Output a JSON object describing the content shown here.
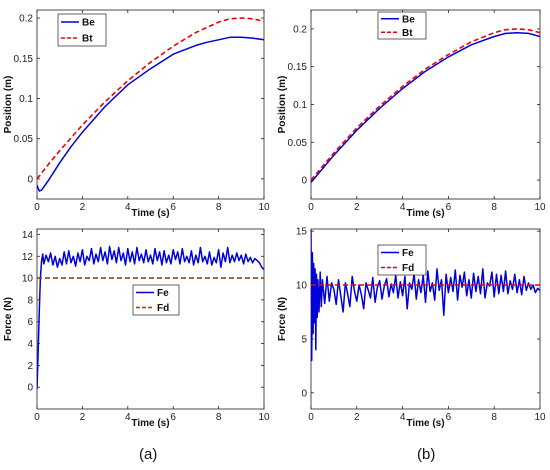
{
  "captions": {
    "a": "(a)",
    "b": "(b)"
  },
  "colors": {
    "be": "#0000dd",
    "bt": "#ee0000",
    "fe": "#0000dd",
    "fd_a": "#8b4513",
    "fd_b": "#ee0000"
  },
  "chart_data": [
    {
      "id": "a_pos",
      "type": "line",
      "xlabel": "Time (s)",
      "ylabel": "Position (m)",
      "xlim": [
        0,
        10
      ],
      "ylim": [
        -0.025,
        0.21
      ],
      "xticks": [
        0,
        2,
        4,
        6,
        8,
        10
      ],
      "yticks": [
        0,
        0.05,
        0.1,
        0.15,
        0.2
      ],
      "grid": false,
      "legend": "top-left",
      "series": [
        {
          "name": "Be",
          "style": "solid",
          "color": "#0000dd",
          "x": [
            0,
            0.1,
            0.2,
            0.3,
            0.5,
            1,
            1.5,
            2,
            3,
            4,
            5,
            6,
            7,
            7.5,
            8,
            8.5,
            9,
            9.5,
            10
          ],
          "y": [
            -0.008,
            -0.015,
            -0.014,
            -0.01,
            -0.002,
            0.02,
            0.04,
            0.058,
            0.09,
            0.117,
            0.137,
            0.155,
            0.166,
            0.17,
            0.173,
            0.176,
            0.176,
            0.175,
            0.173
          ]
        },
        {
          "name": "Bt",
          "style": "dashed",
          "color": "#ee0000",
          "x": [
            0,
            0.5,
            1,
            2,
            3,
            4,
            5,
            6,
            7,
            8,
            8.5,
            9,
            9.5,
            10
          ],
          "y": [
            0,
            0.018,
            0.035,
            0.067,
            0.096,
            0.122,
            0.145,
            0.165,
            0.182,
            0.195,
            0.199,
            0.2,
            0.199,
            0.196
          ]
        }
      ]
    },
    {
      "id": "b_pos",
      "type": "line",
      "xlabel": "Time (s)",
      "ylabel": "Position (m)",
      "xlim": [
        0,
        10
      ],
      "ylim": [
        -0.025,
        0.225
      ],
      "xticks": [
        0,
        2,
        4,
        6,
        8,
        10
      ],
      "yticks": [
        0,
        0.05,
        0.1,
        0.15,
        0.2
      ],
      "grid": false,
      "legend": "top-center",
      "series": [
        {
          "name": "Be",
          "style": "solid",
          "color": "#0000dd",
          "x": [
            0,
            1,
            2,
            3,
            4,
            5,
            6,
            7,
            8,
            8.5,
            9,
            9.5,
            10
          ],
          "y": [
            -0.003,
            0.033,
            0.066,
            0.095,
            0.121,
            0.144,
            0.163,
            0.179,
            0.19,
            0.194,
            0.195,
            0.194,
            0.19
          ]
        },
        {
          "name": "Bt",
          "style": "dashed",
          "color": "#ee0000",
          "x": [
            0,
            1,
            2,
            3,
            4,
            5,
            6,
            7,
            8,
            8.5,
            9,
            9.5,
            10
          ],
          "y": [
            0,
            0.036,
            0.069,
            0.098,
            0.124,
            0.147,
            0.166,
            0.183,
            0.195,
            0.199,
            0.2,
            0.199,
            0.195
          ]
        }
      ]
    },
    {
      "id": "a_force",
      "type": "line",
      "xlabel": "Time (s)",
      "ylabel": "Force (N)",
      "xlim": [
        0,
        10
      ],
      "ylim": [
        -2,
        14.5
      ],
      "xticks": [
        0,
        2,
        4,
        6,
        8,
        10
      ],
      "yticks": [
        0,
        2,
        4,
        6,
        8,
        10,
        12,
        14
      ],
      "grid": false,
      "legend": "center",
      "series": [
        {
          "name": "Fe",
          "style": "solid",
          "color": "#0000dd",
          "x": [
            0,
            0.05,
            0.1,
            0.15,
            0.2,
            0.25,
            0.3,
            0.4,
            0.5,
            0.6,
            0.7,
            0.8,
            0.9,
            1.0,
            1.1,
            1.2,
            1.3,
            1.4,
            1.5,
            1.6,
            1.7,
            1.8,
            1.9,
            2.0,
            2.1,
            2.2,
            2.3,
            2.4,
            2.5,
            2.6,
            2.7,
            2.8,
            2.9,
            3.0,
            3.1,
            3.2,
            3.3,
            3.4,
            3.5,
            3.6,
            3.7,
            3.8,
            3.9,
            4.0,
            4.1,
            4.2,
            4.3,
            4.4,
            4.5,
            4.6,
            4.7,
            4.8,
            4.9,
            5.0,
            5.1,
            5.2,
            5.3,
            5.4,
            5.5,
            5.6,
            5.7,
            5.8,
            5.9,
            6.0,
            6.1,
            6.2,
            6.3,
            6.4,
            6.5,
            6.6,
            6.7,
            6.8,
            6.9,
            7.0,
            7.1,
            7.2,
            7.3,
            7.4,
            7.5,
            7.6,
            7.7,
            7.8,
            7.9,
            8.0,
            8.1,
            8.2,
            8.3,
            8.4,
            8.5,
            8.6,
            8.7,
            8.8,
            8.9,
            9.0,
            9.1,
            9.2,
            9.3,
            9.4,
            9.5,
            9.6,
            9.7,
            9.8,
            9.9,
            10.0
          ],
          "y": [
            -0.2,
            3,
            7,
            10,
            11.5,
            12.2,
            11.3,
            12.1,
            11.5,
            12.3,
            11.2,
            12.0,
            11.0,
            11.8,
            11.2,
            12.4,
            11.3,
            12.5,
            11.4,
            12.0,
            11.1,
            12.3,
            11.5,
            12.6,
            11.2,
            12.0,
            11.6,
            12.7,
            11.3,
            12.2,
            11.5,
            12.8,
            11.6,
            12.4,
            11.3,
            12.9,
            11.7,
            12.5,
            11.4,
            12.8,
            11.6,
            12.3,
            11.2,
            12.7,
            11.5,
            12.4,
            11.3,
            12.8,
            11.6,
            12.2,
            11.4,
            12.6,
            11.5,
            12.1,
            11.3,
            12.7,
            11.6,
            12.4,
            11.2,
            12.5,
            11.4,
            12.1,
            11.3,
            12.6,
            11.7,
            12.4,
            11.3,
            12.7,
            11.5,
            12.0,
            11.4,
            12.5,
            11.2,
            12.1,
            11.4,
            12.8,
            11.5,
            12.0,
            11.3,
            12.4,
            11.2,
            11.9,
            11.4,
            12.6,
            11.0,
            12.3,
            11.5,
            12.8,
            11.4,
            12.1,
            11.5,
            12.3,
            11.6,
            12.1,
            11.3,
            12.2,
            11.5,
            11.9,
            11.4,
            11.8,
            11.6,
            11.4,
            11.0,
            10.8
          ]
        },
        {
          "name": "Fd",
          "style": "dashed",
          "color": "#8b4513",
          "x": [
            0,
            10
          ],
          "y": [
            10,
            10
          ]
        }
      ]
    },
    {
      "id": "b_force",
      "type": "line",
      "xlabel": "Time (s)",
      "ylabel": "Force (N)",
      "xlim": [
        0,
        10
      ],
      "ylim": [
        -1.5,
        15.2
      ],
      "xticks": [
        0,
        2,
        4,
        6,
        8,
        10
      ],
      "yticks": [
        0,
        5,
        10,
        15
      ],
      "grid": false,
      "legend": "top-left",
      "series": [
        {
          "name": "Fe",
          "style": "solid",
          "color": "#0000dd",
          "x": [
            0,
            0.03,
            0.06,
            0.09,
            0.12,
            0.15,
            0.18,
            0.21,
            0.24,
            0.27,
            0.3,
            0.35,
            0.4,
            0.45,
            0.5,
            0.6,
            0.7,
            0.8,
            0.9,
            1.0,
            1.1,
            1.2,
            1.3,
            1.4,
            1.5,
            1.6,
            1.7,
            1.8,
            1.9,
            2.0,
            2.1,
            2.2,
            2.3,
            2.4,
            2.5,
            2.6,
            2.7,
            2.8,
            2.9,
            3.0,
            3.1,
            3.2,
            3.3,
            3.4,
            3.5,
            3.6,
            3.7,
            3.8,
            3.9,
            4.0,
            4.1,
            4.2,
            4.3,
            4.4,
            4.5,
            4.6,
            4.7,
            4.8,
            4.9,
            5.0,
            5.1,
            5.2,
            5.3,
            5.4,
            5.5,
            5.6,
            5.7,
            5.8,
            5.9,
            6.0,
            6.1,
            6.2,
            6.3,
            6.4,
            6.5,
            6.6,
            6.7,
            6.8,
            6.9,
            7.0,
            7.1,
            7.2,
            7.3,
            7.4,
            7.5,
            7.6,
            7.7,
            7.8,
            7.9,
            8.0,
            8.1,
            8.2,
            8.3,
            8.4,
            8.5,
            8.6,
            8.7,
            8.8,
            8.9,
            9.0,
            9.1,
            9.2,
            9.3,
            9.4,
            9.5,
            9.6,
            9.7,
            9.8,
            9.9,
            10.0
          ],
          "y": [
            15.1,
            3.0,
            13.0,
            5.5,
            12.0,
            6.5,
            11.5,
            4.0,
            11.0,
            7.0,
            10.5,
            7.5,
            11.2,
            8.0,
            10.5,
            8.3,
            10.8,
            8.5,
            10.2,
            9.6,
            8.2,
            10.5,
            9.0,
            7.5,
            10.2,
            9.2,
            8.0,
            10.8,
            9.4,
            8.5,
            10.0,
            9.1,
            7.8,
            10.2,
            9.5,
            8.8,
            10.7,
            8.4,
            9.8,
            10.4,
            8.7,
            9.9,
            10.6,
            8.9,
            10.1,
            9.3,
            10.9,
            8.8,
            10.3,
            9.0,
            10.8,
            7.8,
            10.2,
            9.6,
            11.0,
            8.7,
            10.5,
            9.3,
            10.9,
            8.4,
            11.3,
            9.4,
            10.2,
            8.6,
            11.5,
            9.5,
            10.5,
            7.2,
            11.0,
            9.3,
            10.7,
            9.4,
            11.4,
            8.6,
            10.9,
            9.8,
            11.2,
            9.0,
            10.5,
            8.8,
            11.1,
            9.4,
            10.8,
            9.2,
            11.5,
            8.8,
            10.2,
            9.9,
            11.2,
            8.9,
            11.0,
            9.2,
            10.9,
            9.4,
            11.3,
            9.2,
            10.4,
            9.6,
            11.0,
            9.3,
            10.5,
            9.1,
            10.8,
            9.5,
            10.2,
            9.6,
            10.0,
            9.3,
            9.7,
            9.5
          ]
        },
        {
          "name": "Fd",
          "style": "dashed",
          "color": "#ee0000",
          "x": [
            0,
            10
          ],
          "y": [
            10,
            10
          ]
        }
      ]
    }
  ]
}
